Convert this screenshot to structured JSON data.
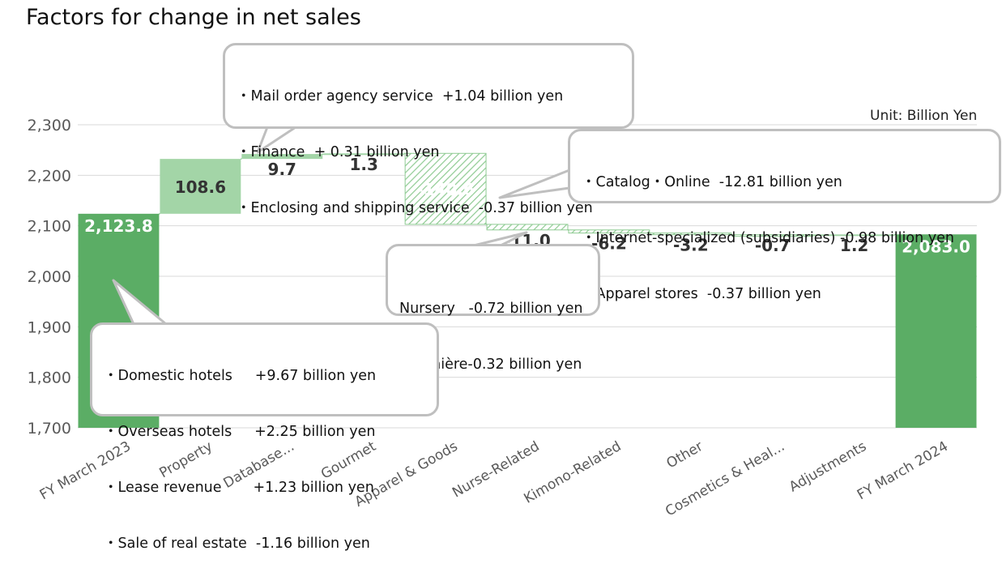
{
  "chart_data": {
    "type": "waterfall",
    "title": "Factors for change in net sales",
    "unit": "Unit: Billion Yen",
    "ylim": [
      1700,
      2300
    ],
    "yticks": [
      1700,
      1800,
      1900,
      2000,
      2100,
      2200,
      2300
    ],
    "ytick_labels": [
      "1,700",
      "1,800",
      "1,900",
      "2,000",
      "2,100",
      "2,200",
      "2,300"
    ],
    "grid": true,
    "items": [
      {
        "category": "FY March 2023",
        "value": 2123.8,
        "label": "2,123.8",
        "kind": "total"
      },
      {
        "category": "Property",
        "value": 108.6,
        "label": "108.6",
        "kind": "increase"
      },
      {
        "category": "Database...",
        "value": 9.7,
        "label": "9.7",
        "kind": "increase"
      },
      {
        "category": "Gourmet",
        "value": 1.3,
        "label": "1.3",
        "kind": "increase"
      },
      {
        "category": "Apparel & Goods",
        "value": -140.6,
        "label": "-140.6",
        "kind": "decrease"
      },
      {
        "category": "Nurse-Related",
        "value": -11.0,
        "label": "-11.0",
        "kind": "decrease"
      },
      {
        "category": "Kimono-Related",
        "value": -6.2,
        "label": "-6.2",
        "kind": "decrease"
      },
      {
        "category": "Other",
        "value": -3.2,
        "label": "-3.2",
        "kind": "decrease"
      },
      {
        "category": "Cosmetics & Heal...",
        "value": -0.7,
        "label": "-0.7",
        "kind": "decrease"
      },
      {
        "category": "Adjustments",
        "value": 1.2,
        "label": "1.2",
        "kind": "increase"
      },
      {
        "category": "FY March 2024",
        "value": 2083.0,
        "label": "2,083.0",
        "kind": "total"
      }
    ],
    "colors": {
      "total": "#5bad65",
      "increase": "#a3d5a7",
      "decrease": "#8fcb93",
      "grid": "#d9d9d9",
      "axis_text": "#595959"
    },
    "annotations": [
      {
        "id": "database",
        "lines": [
          "・Mail order agency service  +1.04 billion yen",
          "・Finance  + 0.31 billion yen",
          "・Enclosing and shipping service  -0.37 billion yen"
        ]
      },
      {
        "id": "apparel",
        "lines": [
          "・Catalog・Online  -12.81 billion yen",
          "・Internet-specialized (subsidiaries) -0.98 billion yen",
          "・Apparel stores  -0.37 billion yen"
        ]
      },
      {
        "id": "nurse",
        "lines": [
          "Nursery   -0.72 billion yen",
          "Infirmière-0.32 billion yen"
        ]
      },
      {
        "id": "property",
        "lines": [
          "・Domestic hotels     +9.67 billion yen",
          "・Overseas hotels     +2.25 billion yen",
          "・Lease revenue       +1.23 billion yen",
          "・Sale of real estate  -1.16 billion yen"
        ]
      }
    ]
  }
}
